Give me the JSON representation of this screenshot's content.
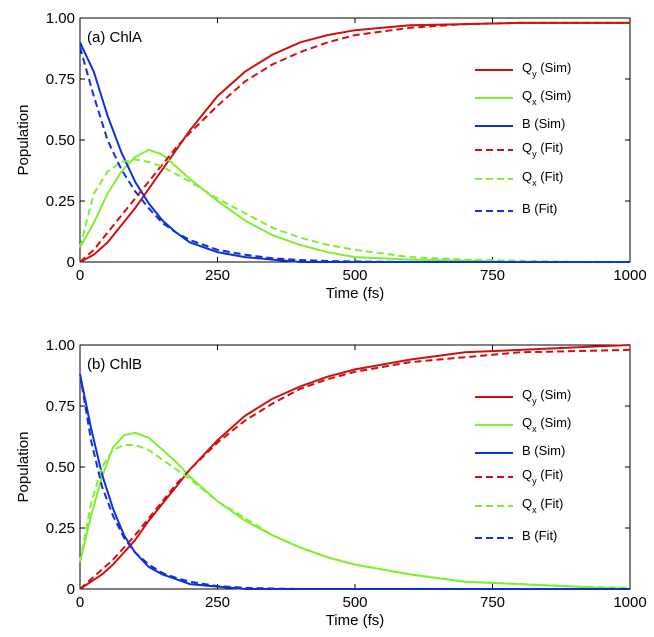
{
  "colors": {
    "Qy": "#d01010",
    "Qx": "#80ee30",
    "B": "#1030e0"
  },
  "legend_entries": [
    {
      "main": "Q",
      "sub": "y",
      "suffix": " (Sim)",
      "series": "Qy",
      "dash": false
    },
    {
      "main": "Q",
      "sub": "x",
      "suffix": " (Sim)",
      "series": "Qx",
      "dash": false
    },
    {
      "main": "B",
      "sub": "",
      "suffix": " (Sim)",
      "series": "B",
      "dash": false
    },
    {
      "main": "Q",
      "sub": "y",
      "suffix": " (Fit)",
      "series": "Qy",
      "dash": true
    },
    {
      "main": "Q",
      "sub": "x",
      "suffix": " (Fit)",
      "series": "Qx",
      "dash": true
    },
    {
      "main": "B",
      "sub": "",
      "suffix": " (Fit)",
      "series": "B",
      "dash": true
    }
  ],
  "chart_data": [
    {
      "type": "line",
      "title": "(a) ChlA",
      "xlabel": "Time (fs)",
      "ylabel": "Population",
      "xlim": [
        0,
        1000
      ],
      "ylim": [
        0,
        1
      ],
      "xticks": [
        "0",
        "250",
        "500",
        "750",
        "1000"
      ],
      "yticks": [
        "0",
        "0.25",
        "0.50",
        "0.75",
        "1.00"
      ],
      "x": [
        0,
        25,
        50,
        75,
        100,
        125,
        150,
        175,
        200,
        250,
        300,
        350,
        400,
        450,
        500,
        600,
        700,
        800,
        900,
        1000
      ],
      "series": [
        {
          "name": "Qy (Sim)",
          "key": "Qy",
          "dash": false,
          "values": [
            0.0,
            0.03,
            0.08,
            0.15,
            0.22,
            0.3,
            0.38,
            0.46,
            0.54,
            0.68,
            0.78,
            0.85,
            0.9,
            0.93,
            0.95,
            0.97,
            0.975,
            0.98,
            0.98,
            0.98
          ]
        },
        {
          "name": "Qx (Sim)",
          "key": "Qx",
          "dash": false,
          "values": [
            0.06,
            0.16,
            0.28,
            0.37,
            0.43,
            0.46,
            0.44,
            0.39,
            0.34,
            0.25,
            0.17,
            0.11,
            0.07,
            0.04,
            0.02,
            0.01,
            0.005,
            0.0,
            0.0,
            0.0
          ]
        },
        {
          "name": "B (Sim)",
          "key": "B",
          "dash": false,
          "values": [
            0.9,
            0.78,
            0.6,
            0.45,
            0.33,
            0.24,
            0.17,
            0.12,
            0.08,
            0.04,
            0.02,
            0.01,
            0.0,
            0.0,
            0.0,
            0.0,
            0.0,
            0.0,
            0.0,
            0.0
          ]
        },
        {
          "name": "Qy (Fit)",
          "key": "Qy",
          "dash": true,
          "values": [
            0.0,
            0.05,
            0.12,
            0.19,
            0.26,
            0.33,
            0.4,
            0.47,
            0.53,
            0.64,
            0.74,
            0.81,
            0.86,
            0.9,
            0.93,
            0.96,
            0.975,
            0.98,
            0.98,
            0.98
          ]
        },
        {
          "name": "Qx (Fit)",
          "key": "Qx",
          "dash": true,
          "values": [
            0.06,
            0.28,
            0.37,
            0.41,
            0.42,
            0.41,
            0.39,
            0.36,
            0.33,
            0.26,
            0.2,
            0.14,
            0.1,
            0.07,
            0.05,
            0.02,
            0.01,
            0.005,
            0.0,
            0.0
          ]
        },
        {
          "name": "B (Fit)",
          "key": "B",
          "dash": true,
          "values": [
            0.88,
            0.68,
            0.5,
            0.38,
            0.29,
            0.22,
            0.16,
            0.12,
            0.09,
            0.05,
            0.03,
            0.015,
            0.008,
            0.004,
            0.002,
            0.0,
            0.0,
            0.0,
            0.0,
            0.0
          ]
        }
      ]
    },
    {
      "type": "line",
      "title": "(b) ChlB",
      "xlabel": "Time (fs)",
      "ylabel": "Population",
      "xlim": [
        0,
        1000
      ],
      "ylim": [
        0,
        1
      ],
      "xticks": [
        "0",
        "250",
        "500",
        "750",
        "1000"
      ],
      "yticks": [
        "0",
        "0.25",
        "0.50",
        "0.75",
        "1.00"
      ],
      "x": [
        0,
        20,
        40,
        60,
        80,
        100,
        125,
        150,
        175,
        200,
        250,
        300,
        350,
        400,
        450,
        500,
        600,
        700,
        800,
        900,
        1000
      ],
      "series": [
        {
          "name": "Qy (Sim)",
          "key": "Qy",
          "dash": false,
          "values": [
            0.0,
            0.03,
            0.06,
            0.1,
            0.15,
            0.2,
            0.28,
            0.35,
            0.42,
            0.49,
            0.61,
            0.71,
            0.78,
            0.83,
            0.87,
            0.9,
            0.94,
            0.97,
            0.98,
            0.99,
            1.0
          ]
        },
        {
          "name": "Qx (Sim)",
          "key": "Qx",
          "dash": false,
          "values": [
            0.11,
            0.3,
            0.46,
            0.58,
            0.63,
            0.64,
            0.62,
            0.57,
            0.52,
            0.46,
            0.36,
            0.28,
            0.22,
            0.17,
            0.13,
            0.1,
            0.06,
            0.03,
            0.02,
            0.01,
            0.0
          ]
        },
        {
          "name": "B (Sim)",
          "key": "B",
          "dash": false,
          "values": [
            0.88,
            0.66,
            0.47,
            0.33,
            0.22,
            0.15,
            0.09,
            0.06,
            0.04,
            0.02,
            0.01,
            0.0,
            0.0,
            0.0,
            0.0,
            0.0,
            0.0,
            0.0,
            0.0,
            0.0,
            0.0
          ]
        },
        {
          "name": "Qy (Fit)",
          "key": "Qy",
          "dash": true,
          "values": [
            0.0,
            0.04,
            0.08,
            0.12,
            0.17,
            0.22,
            0.29,
            0.36,
            0.43,
            0.49,
            0.6,
            0.69,
            0.76,
            0.82,
            0.86,
            0.89,
            0.93,
            0.95,
            0.97,
            0.975,
            0.98
          ]
        },
        {
          "name": "Qx (Fit)",
          "key": "Qx",
          "dash": true,
          "values": [
            0.11,
            0.35,
            0.5,
            0.57,
            0.59,
            0.59,
            0.57,
            0.53,
            0.49,
            0.45,
            0.36,
            0.29,
            0.22,
            0.17,
            0.13,
            0.1,
            0.06,
            0.03,
            0.02,
            0.01,
            0.005
          ]
        },
        {
          "name": "B (Fit)",
          "key": "B",
          "dash": true,
          "values": [
            0.88,
            0.61,
            0.42,
            0.3,
            0.21,
            0.15,
            0.1,
            0.065,
            0.045,
            0.03,
            0.012,
            0.005,
            0.002,
            0.0,
            0.0,
            0.0,
            0.0,
            0.0,
            0.0,
            0.0,
            0.0
          ]
        }
      ]
    }
  ]
}
